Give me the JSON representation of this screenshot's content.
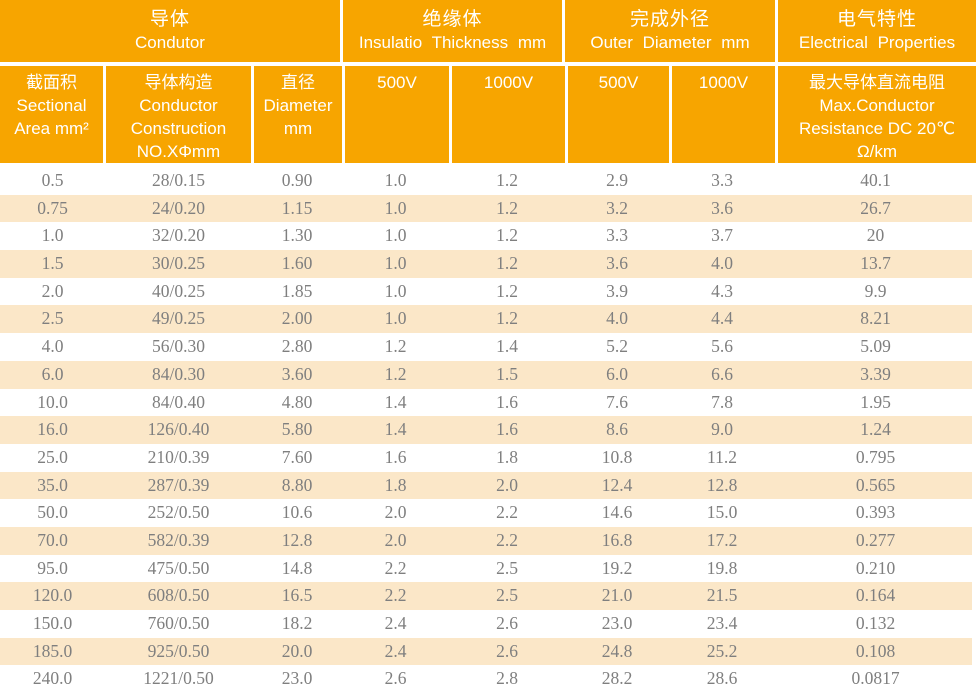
{
  "colors": {
    "header_orange": "#F7A500",
    "stripe_cream": "#FBE7C8",
    "data_text": "#7F7F7F",
    "header_text": "#FFFFFF"
  },
  "table": {
    "groups": [
      {
        "zh": "导体",
        "en": "Condutor"
      },
      {
        "zh": "绝缘体",
        "en": "Insulatio Thickness mm"
      },
      {
        "zh": "完成外径",
        "en": "Outer Diameter mm"
      },
      {
        "zh": "电气特性",
        "en": "Electrical Properties"
      }
    ],
    "subheaders": [
      "截面积\nSectional\nArea mm²",
      "导体构造\nConductor\nConstruction\nNO.XΦmm",
      "直径\nDiameter\nmm",
      "500V",
      "1000V",
      "500V",
      "1000V",
      "最大导体直流电阻\nMax.Conductor\nResistance DC 20℃\nΩ/km"
    ],
    "rows": [
      [
        "0.5",
        "28/0.15",
        "0.90",
        "1.0",
        "1.2",
        "2.9",
        "3.3",
        "40.1"
      ],
      [
        "0.75",
        "24/0.20",
        "1.15",
        "1.0",
        "1.2",
        "3.2",
        "3.6",
        "26.7"
      ],
      [
        "1.0",
        "32/0.20",
        "1.30",
        "1.0",
        "1.2",
        "3.3",
        "3.7",
        "20"
      ],
      [
        "1.5",
        "30/0.25",
        "1.60",
        "1.0",
        "1.2",
        "3.6",
        "4.0",
        "13.7"
      ],
      [
        "2.0",
        "40/0.25",
        "1.85",
        "1.0",
        "1.2",
        "3.9",
        "4.3",
        "9.9"
      ],
      [
        "2.5",
        "49/0.25",
        "2.00",
        "1.0",
        "1.2",
        "4.0",
        "4.4",
        "8.21"
      ],
      [
        "4.0",
        "56/0.30",
        "2.80",
        "1.2",
        "1.4",
        "5.2",
        "5.6",
        "5.09"
      ],
      [
        "6.0",
        "84/0.30",
        "3.60",
        "1.2",
        "1.5",
        "6.0",
        "6.6",
        "3.39"
      ],
      [
        "10.0",
        "84/0.40",
        "4.80",
        "1.4",
        "1.6",
        "7.6",
        "7.8",
        "1.95"
      ],
      [
        "16.0",
        "126/0.40",
        "5.80",
        "1.4",
        "1.6",
        "8.6",
        "9.0",
        "1.24"
      ],
      [
        "25.0",
        "210/0.39",
        "7.60",
        "1.6",
        "1.8",
        "10.8",
        "11.2",
        "0.795"
      ],
      [
        "35.0",
        "287/0.39",
        "8.80",
        "1.8",
        "2.0",
        "12.4",
        "12.8",
        "0.565"
      ],
      [
        "50.0",
        "252/0.50",
        "10.6",
        "2.0",
        "2.2",
        "14.6",
        "15.0",
        "0.393"
      ],
      [
        "70.0",
        "582/0.39",
        "12.8",
        "2.0",
        "2.2",
        "16.8",
        "17.2",
        "0.277"
      ],
      [
        "95.0",
        "475/0.50",
        "14.8",
        "2.2",
        "2.5",
        "19.2",
        "19.8",
        "0.210"
      ],
      [
        "120.0",
        "608/0.50",
        "16.5",
        "2.2",
        "2.5",
        "21.0",
        "21.5",
        "0.164"
      ],
      [
        "150.0",
        "760/0.50",
        "18.2",
        "2.4",
        "2.6",
        "23.0",
        "23.4",
        "0.132"
      ],
      [
        "185.0",
        "925/0.50",
        "20.0",
        "2.4",
        "2.6",
        "24.8",
        "25.2",
        "0.108"
      ],
      [
        "240.0",
        "1221/0.50",
        "23.0",
        "2.6",
        "2.8",
        "28.2",
        "28.6",
        "0.0817"
      ]
    ]
  }
}
